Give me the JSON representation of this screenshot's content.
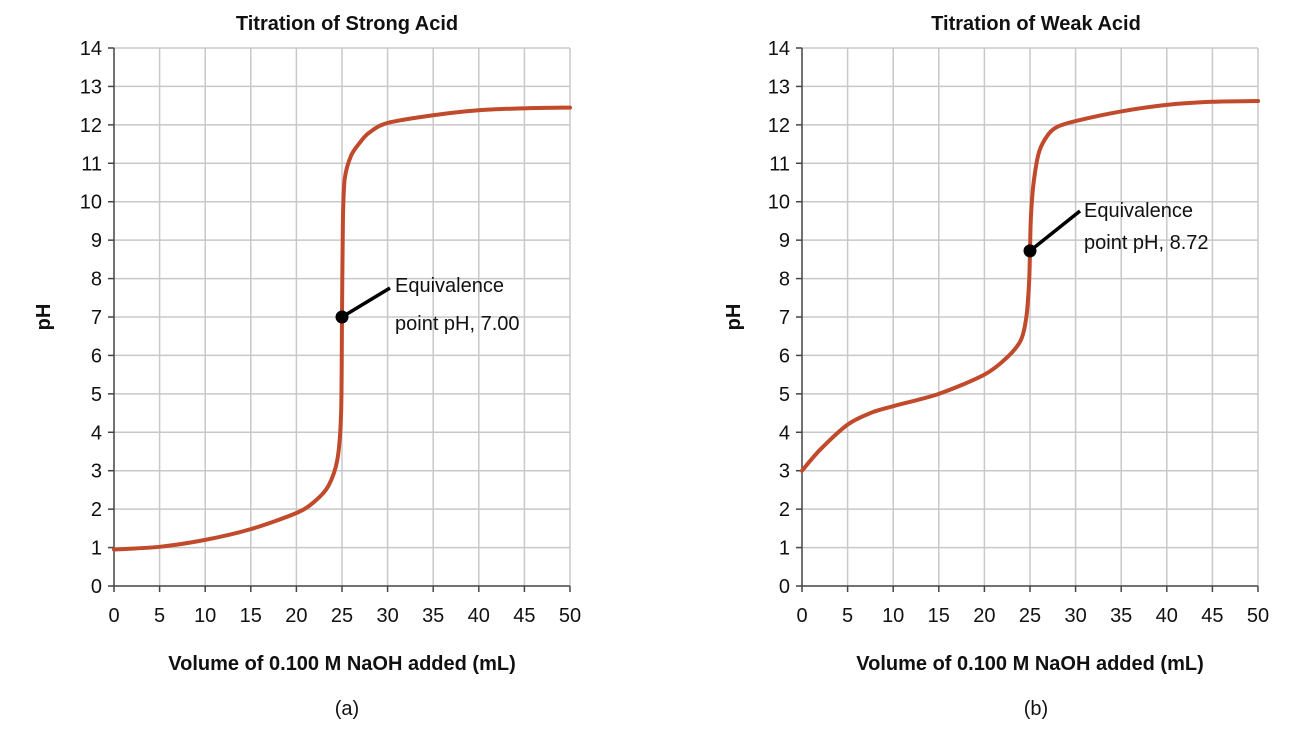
{
  "chart_data": [
    {
      "type": "line",
      "panel": "(a)",
      "title": "Titration of Strong Acid",
      "xlabel": "Volume of 0.100 M NaOH added (mL)",
      "ylabel": "pH",
      "xlim": [
        0,
        50
      ],
      "ylim": [
        0,
        14
      ],
      "xticks": [
        0,
        5,
        10,
        15,
        20,
        25,
        30,
        35,
        40,
        45,
        50
      ],
      "yticks": [
        0,
        1,
        2,
        3,
        4,
        5,
        6,
        7,
        8,
        9,
        10,
        11,
        12,
        13,
        14
      ],
      "grid": true,
      "line_color": "#c04a2b",
      "x": [
        0,
        5,
        10,
        15,
        20,
        22,
        23.5,
        24.5,
        24.9,
        25,
        25.1,
        25.3,
        26,
        27,
        28,
        30,
        35,
        40,
        45,
        50
      ],
      "y": [
        0.95,
        1.02,
        1.2,
        1.48,
        1.9,
        2.2,
        2.6,
        3.3,
        4.5,
        7,
        9.5,
        10.6,
        11.2,
        11.55,
        11.8,
        12.05,
        12.25,
        12.38,
        12.43,
        12.45
      ],
      "annotation": {
        "x": 25,
        "y": 7.0,
        "line1": "Equivalence",
        "line2": "point pH, 7.00"
      }
    },
    {
      "type": "line",
      "panel": "(b)",
      "title": "Titration of Weak Acid",
      "xlabel": "Volume of 0.100 M NaOH added (mL)",
      "ylabel": "pH",
      "xlim": [
        0,
        50
      ],
      "ylim": [
        0,
        14
      ],
      "xticks": [
        0,
        5,
        10,
        15,
        20,
        25,
        30,
        35,
        40,
        45,
        50
      ],
      "yticks": [
        0,
        1,
        2,
        3,
        4,
        5,
        6,
        7,
        8,
        9,
        10,
        11,
        12,
        13,
        14
      ],
      "grid": true,
      "line_color": "#c04a2b",
      "x": [
        0,
        2,
        5,
        7.5,
        10,
        15,
        20,
        22.5,
        24,
        24.6,
        24.9,
        25,
        25.1,
        25.4,
        26,
        27,
        28,
        30,
        35,
        40,
        45,
        50
      ],
      "y": [
        3.0,
        3.55,
        4.2,
        4.5,
        4.68,
        5.0,
        5.5,
        5.95,
        6.4,
        7.0,
        7.9,
        8.72,
        9.6,
        10.5,
        11.3,
        11.75,
        11.95,
        12.1,
        12.35,
        12.52,
        12.6,
        12.62
      ],
      "annotation": {
        "x": 25,
        "y": 8.72,
        "line1": "Equivalence",
        "line2": "point pH, 8.72"
      }
    }
  ]
}
